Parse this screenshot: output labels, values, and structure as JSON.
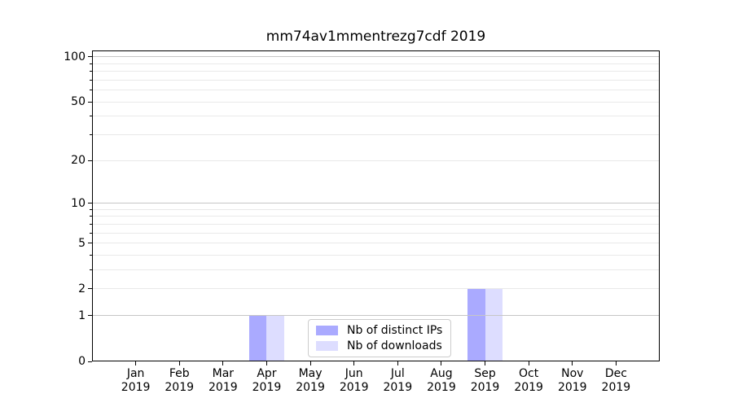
{
  "title": "mm74av1mmentrezg7cdf 2019",
  "chart_data": {
    "type": "bar",
    "title": "mm74av1mmentrezg7cdf 2019",
    "categories": [
      "Jan",
      "Feb",
      "Mar",
      "Apr",
      "May",
      "Jun",
      "Jul",
      "Aug",
      "Sep",
      "Oct",
      "Nov",
      "Dec"
    ],
    "category_year": "2019",
    "series": [
      {
        "name": "Nb of distinct IPs",
        "color": "#aaaaff",
        "values": [
          0,
          0,
          0,
          1,
          0,
          0,
          0,
          0,
          2,
          0,
          0,
          0
        ]
      },
      {
        "name": "Nb of downloads",
        "color": "#ddddff",
        "values": [
          0,
          0,
          0,
          1,
          0,
          0,
          0,
          0,
          2,
          0,
          0,
          0
        ]
      }
    ],
    "yscale": "log1p",
    "ylim": [
      0,
      110
    ],
    "yticks": [
      0,
      1,
      2,
      5,
      10,
      20,
      50,
      100
    ],
    "y_major_gridlines": [
      1,
      10,
      100
    ],
    "y_minor_ticks": [
      3,
      4,
      6,
      7,
      8,
      9,
      30,
      40,
      60,
      70,
      80,
      90
    ],
    "grid": true,
    "legend_position": "bottom-center"
  },
  "colors": {
    "background": "#ffffff",
    "spine": "#000000",
    "major_grid": "#c6c6c6",
    "minor_grid": "#e9e9e9",
    "text": "#000000"
  }
}
